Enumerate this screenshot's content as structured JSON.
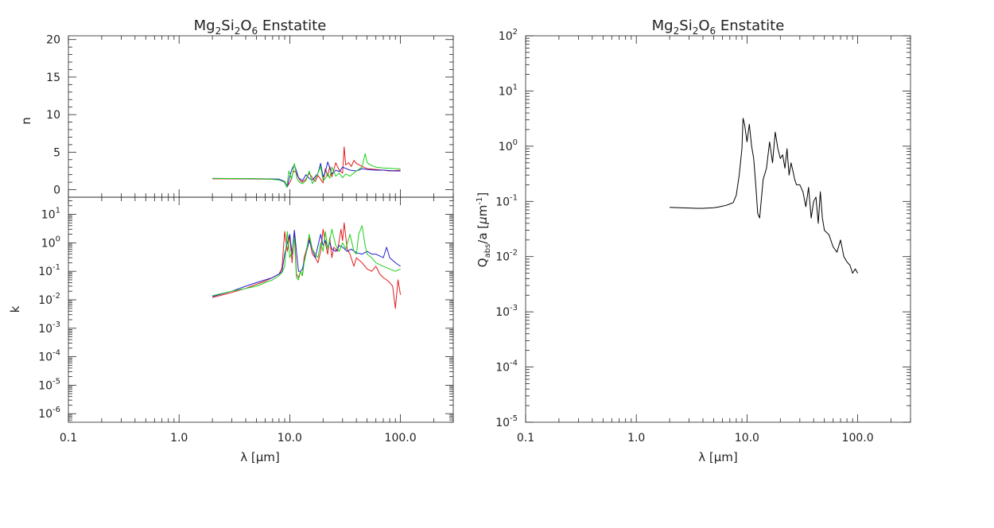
{
  "colors": {
    "red": "#e31a1c",
    "blue": "#1f1fcc",
    "green": "#19d119",
    "black": "#000000"
  },
  "chart_data": [
    {
      "type": "line",
      "panel": "n",
      "title": "Mg2Si2O6 Enstatite",
      "title_parts": {
        "a": "Mg",
        "s1": "2",
        "b": "Si",
        "s2": "2",
        "c": "O",
        "s3": "6",
        "d": " Enstatite"
      },
      "xlabel": "λ [μm]",
      "ylabel": "n",
      "xscale": "log",
      "xlim": [
        0.1,
        300
      ],
      "ylim": [
        -1,
        20.5
      ],
      "grid": false,
      "x_ticklabels": [
        "0.1",
        "1.0",
        "10.0",
        "100.0"
      ],
      "y_ticklabels": [
        "0",
        "5",
        "10",
        "15",
        "20"
      ],
      "series": [
        {
          "color": "red",
          "x": [
            2,
            4,
            6,
            8,
            8.8,
            9.2,
            9.6,
            10.2,
            10.8,
            11.4,
            11.8,
            12.4,
            13,
            14,
            15,
            16,
            17,
            18,
            19,
            20,
            21,
            22,
            23,
            24,
            26,
            28,
            30,
            31,
            32,
            34,
            36,
            38,
            40,
            45,
            50,
            60,
            70,
            80,
            90,
            100
          ],
          "y": [
            1.45,
            1.44,
            1.42,
            1.35,
            1.1,
            0.7,
            0.5,
            1.2,
            2.5,
            2.3,
            1.8,
            1.2,
            1.0,
            1.4,
            2.2,
            1.6,
            1.1,
            1.9,
            1.4,
            0.9,
            2.8,
            1.8,
            3.1,
            1.7,
            3.6,
            2.6,
            2.2,
            5.7,
            3.3,
            3.6,
            3.1,
            3.9,
            3.5,
            3.1,
            2.8,
            2.7,
            2.6,
            2.5,
            2.55,
            2.6
          ]
        },
        {
          "color": "blue",
          "x": [
            2,
            4,
            6,
            8,
            9,
            9.5,
            10,
            10.5,
            11,
            11.5,
            12,
            13,
            14,
            15,
            16,
            18,
            19,
            20,
            21,
            22,
            24,
            26,
            28,
            30,
            35,
            40,
            45,
            50,
            60,
            70,
            80,
            90,
            100
          ],
          "y": [
            1.5,
            1.48,
            1.45,
            1.4,
            1.1,
            0.4,
            1.8,
            2.8,
            3.3,
            2.5,
            1.6,
            1.2,
            2.0,
            1.5,
            1.3,
            2.2,
            3.5,
            1.7,
            2.4,
            3.7,
            2.1,
            2.6,
            2.4,
            3.0,
            2.6,
            2.5,
            2.8,
            2.7,
            2.6,
            2.6,
            2.55,
            2.5,
            2.5
          ]
        },
        {
          "color": "green",
          "x": [
            2,
            4,
            6,
            8,
            9,
            9.4,
            9.8,
            10.4,
            11,
            11.6,
            12.2,
            13,
            14,
            15,
            16,
            17,
            18,
            19,
            20,
            21,
            22,
            23,
            24,
            26,
            28,
            30,
            32,
            35,
            40,
            45,
            48,
            50,
            55,
            60,
            70,
            80,
            90,
            100
          ],
          "y": [
            1.5,
            1.48,
            1.45,
            1.3,
            1.0,
            0.3,
            2.5,
            1.4,
            3.5,
            1.5,
            1.0,
            0.8,
            1.2,
            2.5,
            0.8,
            1.5,
            2.2,
            3.1,
            1.2,
            1.5,
            2.2,
            1.5,
            3.0,
            1.8,
            2.2,
            1.6,
            2.1,
            1.8,
            2.5,
            3.0,
            4.8,
            3.6,
            3.2,
            3.0,
            2.9,
            2.85,
            2.8,
            2.8
          ]
        }
      ]
    },
    {
      "type": "line",
      "panel": "k",
      "xlabel": "λ [μm]",
      "ylabel": "k",
      "xscale": "log",
      "yscale": "log",
      "xlim": [
        0.1,
        300
      ],
      "ylim": [
        5e-07,
        40
      ],
      "grid": false,
      "x_ticklabels": [
        "0.1",
        "1.0",
        "10.0",
        "100.0"
      ],
      "y_ticklabels": [
        {
          "base": "10",
          "exp": "1",
          "value": 10
        },
        {
          "base": "10",
          "exp": "0",
          "value": 1
        },
        {
          "base": "10",
          "exp": "-1",
          "value": 0.1
        },
        {
          "base": "10",
          "exp": "-2",
          "value": 0.01
        },
        {
          "base": "10",
          "exp": "-3",
          "value": 0.001
        },
        {
          "base": "10",
          "exp": "-4",
          "value": 0.0001
        },
        {
          "base": "10",
          "exp": "-5",
          "value": 1e-05
        },
        {
          "base": "10",
          "exp": "-6",
          "value": 1e-06
        }
      ],
      "series": [
        {
          "color": "red",
          "x": [
            2,
            3,
            4,
            5,
            6,
            7,
            8,
            8.5,
            9,
            9.5,
            10,
            10.5,
            11,
            11.5,
            12,
            12.5,
            13,
            13.5,
            14,
            15,
            16,
            17,
            18,
            19,
            20,
            21,
            22,
            23,
            24,
            25,
            27,
            29,
            30,
            31,
            33,
            35,
            38,
            40,
            45,
            50,
            55,
            60,
            65,
            70,
            75,
            80,
            85,
            90,
            95,
            100
          ],
          "y": [
            0.012,
            0.018,
            0.025,
            0.035,
            0.045,
            0.06,
            0.08,
            0.13,
            2.5,
            0.5,
            1.8,
            0.2,
            2.5,
            0.08,
            0.06,
            0.1,
            0.07,
            0.3,
            0.5,
            1.5,
            0.4,
            0.3,
            0.2,
            0.5,
            3.0,
            1.0,
            0.4,
            1.5,
            0.3,
            0.7,
            0.5,
            3.0,
            1.2,
            5.0,
            0.6,
            0.4,
            0.15,
            0.3,
            0.2,
            0.12,
            0.1,
            0.15,
            0.08,
            0.06,
            0.05,
            0.04,
            0.03,
            0.005,
            0.05,
            0.015
          ]
        },
        {
          "color": "blue",
          "x": [
            2,
            3,
            4,
            5,
            6,
            7,
            8,
            8.5,
            9,
            9.5,
            10,
            10.5,
            11,
            11.5,
            12,
            12.5,
            13,
            14,
            15,
            16,
            17,
            18,
            19,
            20,
            21,
            22,
            23,
            24,
            26,
            28,
            30,
            33,
            36,
            40,
            45,
            50,
            55,
            60,
            70,
            75,
            80,
            90,
            100
          ],
          "y": [
            0.013,
            0.02,
            0.03,
            0.04,
            0.05,
            0.06,
            0.08,
            0.1,
            0.4,
            1.0,
            2.0,
            0.4,
            2.8,
            0.5,
            0.1,
            0.1,
            0.12,
            0.4,
            1.2,
            0.6,
            0.3,
            0.8,
            2.0,
            0.8,
            1.2,
            0.7,
            1.0,
            0.6,
            0.5,
            0.8,
            0.7,
            0.5,
            0.6,
            0.45,
            0.4,
            0.5,
            0.4,
            0.4,
            0.3,
            0.7,
            0.3,
            0.2,
            0.15
          ]
        },
        {
          "color": "green",
          "x": [
            2,
            3,
            4,
            5,
            6,
            7,
            8,
            8.5,
            9,
            9.5,
            10,
            10.5,
            11,
            11.5,
            12,
            12.5,
            13,
            13.5,
            14,
            15,
            16,
            17,
            18,
            19,
            20,
            21,
            22,
            23,
            24,
            26,
            28,
            30,
            32,
            35,
            38,
            40,
            42,
            45,
            48,
            50,
            55,
            60,
            70,
            80,
            90,
            100
          ],
          "y": [
            0.014,
            0.02,
            0.025,
            0.03,
            0.04,
            0.05,
            0.07,
            0.09,
            0.15,
            2.5,
            0.3,
            0.5,
            1.5,
            0.06,
            0.05,
            0.1,
            0.07,
            0.2,
            0.4,
            2.0,
            0.6,
            0.4,
            0.3,
            1.0,
            0.5,
            2.5,
            0.6,
            1.2,
            3.0,
            0.8,
            0.5,
            1.0,
            0.6,
            2.0,
            0.5,
            0.4,
            2.0,
            4.0,
            0.8,
            0.4,
            0.3,
            0.2,
            0.15,
            0.12,
            0.1,
            0.12
          ]
        }
      ]
    },
    {
      "type": "line",
      "panel": "qabs",
      "title": "Mg2Si2O6 Enstatite",
      "title_parts": {
        "a": "Mg",
        "s1": "2",
        "b": "Si",
        "s2": "2",
        "c": "O",
        "s3": "6",
        "d": " Enstatite"
      },
      "xlabel": "λ [μm]",
      "ylabel": "Qabs/a [μm-1]",
      "ylabel_parts": {
        "q": "Q",
        "sub": "abs",
        "mid": "/a [",
        "mu": "μ",
        "m": "m",
        "sup": "-1",
        "end": "]"
      },
      "xscale": "log",
      "yscale": "log",
      "xlim": [
        0.1,
        300
      ],
      "ylim": [
        1e-05,
        100
      ],
      "grid": false,
      "x_ticklabels": [
        "0.1",
        "1.0",
        "10.0",
        "100.0"
      ],
      "y_ticklabels": [
        {
          "base": "10",
          "exp": "2",
          "value": 100
        },
        {
          "base": "10",
          "exp": "1",
          "value": 10
        },
        {
          "base": "10",
          "exp": "0",
          "value": 1
        },
        {
          "base": "10",
          "exp": "-1",
          "value": 0.1
        },
        {
          "base": "10",
          "exp": "-2",
          "value": 0.01
        },
        {
          "base": "10",
          "exp": "-3",
          "value": 0.001
        },
        {
          "base": "10",
          "exp": "-4",
          "value": 0.0001
        },
        {
          "base": "10",
          "exp": "-5",
          "value": 1e-05
        }
      ],
      "series": [
        {
          "color": "black",
          "x": [
            2,
            2.5,
            3,
            3.5,
            4,
            4.5,
            5,
            5.5,
            6,
            6.5,
            7,
            7.5,
            8,
            8.5,
            9,
            9.2,
            9.5,
            10,
            10.5,
            11,
            11.5,
            12,
            12.5,
            13,
            14,
            15,
            16,
            17,
            18,
            19,
            20,
            21,
            22,
            23,
            24,
            25,
            26,
            27,
            28,
            30,
            32,
            34,
            36,
            38,
            40,
            42,
            44,
            46,
            48,
            50,
            55,
            60,
            65,
            70,
            75,
            80,
            85,
            90,
            95,
            100
          ],
          "y": [
            0.078,
            0.077,
            0.076,
            0.075,
            0.075,
            0.076,
            0.077,
            0.079,
            0.082,
            0.085,
            0.09,
            0.095,
            0.13,
            0.3,
            0.9,
            3.2,
            2.5,
            1.2,
            2.5,
            1.0,
            0.6,
            0.2,
            0.06,
            0.05,
            0.25,
            0.4,
            1.2,
            0.5,
            1.8,
            0.9,
            0.6,
            0.7,
            0.4,
            0.9,
            0.3,
            0.5,
            0.35,
            0.25,
            0.2,
            0.2,
            0.15,
            0.08,
            0.18,
            0.05,
            0.1,
            0.12,
            0.04,
            0.15,
            0.05,
            0.03,
            0.025,
            0.015,
            0.012,
            0.02,
            0.01,
            0.008,
            0.007,
            0.005,
            0.006,
            0.005
          ]
        }
      ]
    }
  ]
}
